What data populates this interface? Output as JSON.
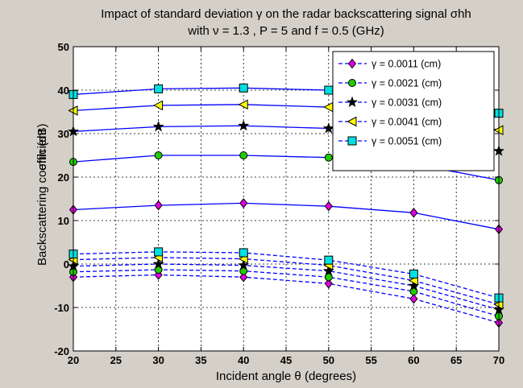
{
  "chart_data": {
    "type": "line",
    "title_line1": "Impact of standard deviation γ on the radar backscattering signal σhh",
    "title_line2": "with ν = 1.3 , P = 5 and f = 0.5 (GHz)",
    "xlabel": "Incident angle θ (degrees)",
    "ylabel_line1": "Backscattering coefficient",
    "ylabel_line2": "σhh (dB)",
    "xlim": [
      20,
      70
    ],
    "ylim": [
      -20,
      50
    ],
    "xticks": [
      "20",
      "25",
      "30",
      "35",
      "40",
      "45",
      "50",
      "55",
      "60",
      "65",
      "70"
    ],
    "yticks": [
      "-20",
      "-10",
      "0",
      "10",
      "20",
      "30",
      "40",
      "50"
    ],
    "grid": true,
    "legend_position": "top-right",
    "x": [
      20,
      30,
      40,
      50,
      60,
      70
    ],
    "series": [
      {
        "name": "γ = 0.0011 (cm)",
        "color": "#0000ff",
        "marker": "diamond",
        "marker_color": "#e000e0",
        "line": "dashed",
        "values": [
          -3,
          -2.5,
          -3,
          -4.5,
          -8,
          -13.5
        ]
      },
      {
        "name": "γ = 0.0021 (cm)",
        "color": "#0000ff",
        "marker": "circle",
        "marker_color": "#22cc00",
        "line": "dashed",
        "values": [
          -1.8,
          -1.3,
          -1.6,
          -3,
          -6.3,
          -12
        ]
      },
      {
        "name": "γ = 0.0031 (cm)",
        "color": "#0000ff",
        "marker": "star",
        "marker_color": "#000000",
        "line": "dashed",
        "values": [
          -0.5,
          0,
          -0.3,
          -1.6,
          -5,
          -10.5
        ]
      },
      {
        "name": "γ = 0.0041 (cm)",
        "color": "#0000ff",
        "marker": "triangle-left",
        "marker_color": "#ffff00",
        "line": "dashed",
        "values": [
          1,
          1.5,
          1.2,
          -0.3,
          -3.8,
          -9.3
        ]
      },
      {
        "name": "γ = 0.0051 (cm)",
        "color": "#0000ff",
        "marker": "square",
        "marker_color": "#00e0e0",
        "line": "dashed",
        "values": [
          2.3,
          2.8,
          2.6,
          0.9,
          -2.3,
          -7.8
        ]
      }
    ],
    "solid_series": [
      {
        "color": "#0000ff",
        "marker": "diamond",
        "marker_color": "#e000e0",
        "values": [
          12.5,
          13.5,
          14,
          13.3,
          11.8,
          8
        ]
      },
      {
        "color": "#0000ff",
        "marker": "circle",
        "marker_color": "#22cc00",
        "values": [
          23.5,
          25,
          25,
          24.5,
          23,
          19.3
        ]
      },
      {
        "color": "#0000ff",
        "marker": "star",
        "marker_color": "#000000",
        "values": [
          30.5,
          31.6,
          31.8,
          31.2,
          30,
          26
        ]
      },
      {
        "color": "#0000ff",
        "marker": "triangle-left",
        "marker_color": "#ffff00",
        "values": [
          35.3,
          36.5,
          36.7,
          36.1,
          35,
          30.8
        ]
      },
      {
        "color": "#0000ff",
        "marker": "square",
        "marker_color": "#00e0e0",
        "values": [
          39,
          40.3,
          40.5,
          40,
          38.8,
          34.7
        ]
      }
    ]
  }
}
